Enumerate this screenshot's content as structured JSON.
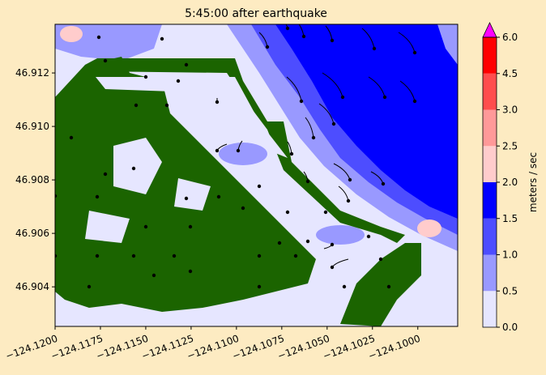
{
  "chart_data": {
    "type": "contourf",
    "title": "5:45:00 after earthquake",
    "xlim": [
      -124.12,
      -124.0978
    ],
    "ylim": [
      46.90252,
      46.91382
    ],
    "xticks": [
      {
        "value": -124.12,
        "label": "−124.1200"
      },
      {
        "value": -124.1175,
        "label": "−124.1175"
      },
      {
        "value": -124.115,
        "label": "−124.1150"
      },
      {
        "value": -124.1125,
        "label": "−124.1125"
      },
      {
        "value": -124.11,
        "label": "−124.1100"
      },
      {
        "value": -124.1075,
        "label": "−124.1075"
      },
      {
        "value": -124.105,
        "label": "−124.1050"
      },
      {
        "value": -124.1025,
        "label": "−124.1025"
      },
      {
        "value": -124.1,
        "label": "−124.1000"
      }
    ],
    "yticks": [
      46.904,
      46.906,
      46.908,
      {
        "value": 46.91,
        "label": "46.910"
      },
      46.912
    ],
    "colorbar": {
      "label": "meters / sec",
      "ticks": [
        {
          "value": 0,
          "label": "0.0"
        },
        {
          "value": 0.5,
          "label": "0.5"
        },
        {
          "value": 1,
          "label": "1.0"
        },
        {
          "value": 1.5,
          "label": "1.5"
        },
        {
          "value": 2,
          "label": "2.0"
        },
        {
          "value": 2.5,
          "label": "2.5"
        },
        {
          "value": 3,
          "label": "3.0"
        },
        {
          "value": 4.5,
          "label": "4.5"
        },
        {
          "value": 6,
          "label": "6.0"
        }
      ],
      "colors": [
        "#e6e6ff",
        "#9999ff",
        "#4d4dff",
        "#0000ff",
        "#ffcccc",
        "#ff9999",
        "#ff4d4d",
        "#ff0000"
      ],
      "extend_color": "#ff00ff"
    }
  }
}
